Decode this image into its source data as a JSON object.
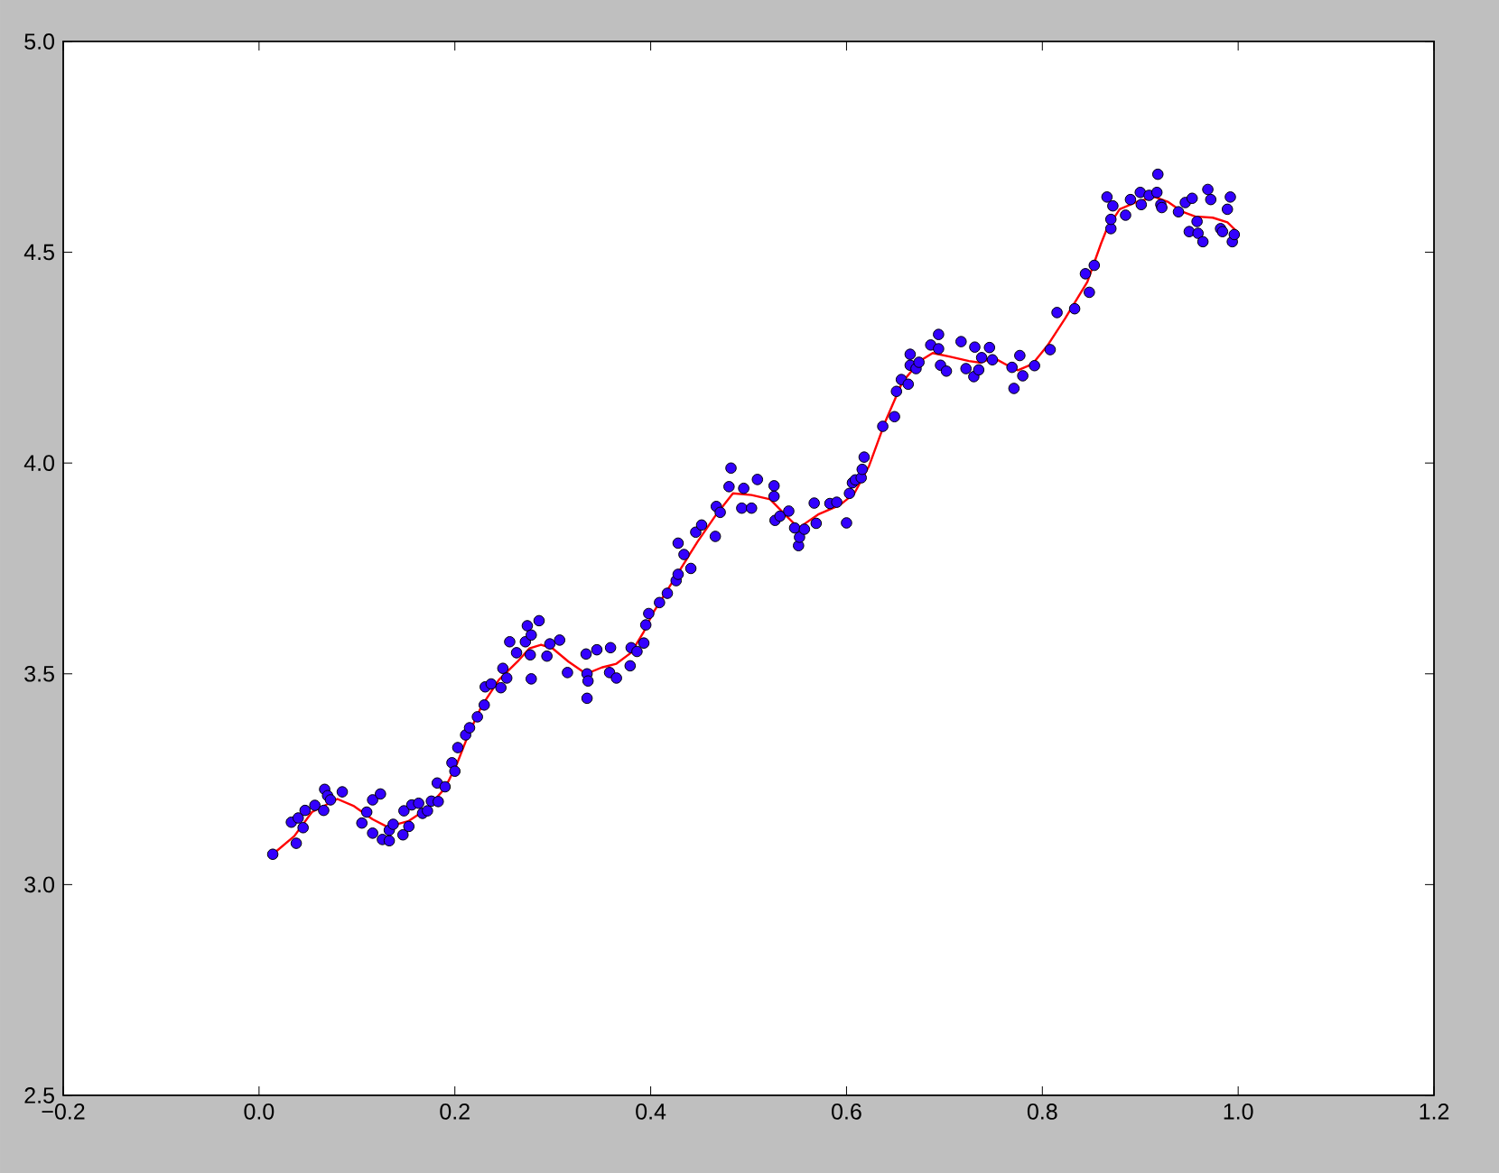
{
  "chart_data": {
    "type": "scatter",
    "xlim": [
      -0.2,
      1.2
    ],
    "ylim": [
      2.5,
      5.0
    ],
    "xticks": [
      {
        "value": -0.2,
        "label": "−0.2"
      },
      {
        "value": 0,
        "label": "0.0"
      },
      {
        "value": 0.2,
        "label": "0.2"
      },
      {
        "value": 0.4,
        "label": "0.4"
      },
      {
        "value": 0.6,
        "label": "0.6"
      },
      {
        "value": 0.8,
        "label": "0.8"
      },
      {
        "value": 1.0,
        "label": "1.0"
      },
      {
        "value": 1.2,
        "label": "1.2"
      }
    ],
    "yticks": [
      {
        "value": 2.5,
        "label": "2.5"
      },
      {
        "value": 3.0,
        "label": "3.0"
      },
      {
        "value": 3.5,
        "label": "3.5"
      },
      {
        "value": 4.0,
        "label": "4.0"
      },
      {
        "value": 4.5,
        "label": "4.5"
      },
      {
        "value": 5.0,
        "label": "5.0"
      }
    ],
    "marker": "circle",
    "series": [
      {
        "color": "#3300ff",
        "x": [
          0.014,
          0.033,
          0.038,
          0.04,
          0.045,
          0.047,
          0.057,
          0.066,
          0.067,
          0.07,
          0.073,
          0.085,
          0.105,
          0.11,
          0.116,
          0.116,
          0.124,
          0.126,
          0.133,
          0.133,
          0.137,
          0.147,
          0.148,
          0.153,
          0.156,
          0.163,
          0.167,
          0.172,
          0.176,
          0.182,
          0.183,
          0.19,
          0.197,
          0.2,
          0.203,
          0.211,
          0.215,
          0.223,
          0.23,
          0.231,
          0.237,
          0.247,
          0.249,
          0.253,
          0.256,
          0.263,
          0.272,
          0.274,
          0.277,
          0.278,
          0.278,
          0.286,
          0.294,
          0.297,
          0.307,
          0.315,
          0.334,
          0.335,
          0.335,
          0.336,
          0.345,
          0.358,
          0.359,
          0.365,
          0.379,
          0.38,
          0.386,
          0.393,
          0.395,
          0.398,
          0.409,
          0.417,
          0.426,
          0.428,
          0.428,
          0.434,
          0.441,
          0.446,
          0.452,
          0.466,
          0.467,
          0.471,
          0.48,
          0.482,
          0.493,
          0.495,
          0.503,
          0.509,
          0.526,
          0.526,
          0.527,
          0.532,
          0.541,
          0.547,
          0.551,
          0.552,
          0.557,
          0.567,
          0.569,
          0.583,
          0.59,
          0.6,
          0.603,
          0.606,
          0.609,
          0.615,
          0.616,
          0.618,
          0.637,
          0.649,
          0.651,
          0.656,
          0.663,
          0.665,
          0.665,
          0.671,
          0.674,
          0.686,
          0.694,
          0.694,
          0.696,
          0.702,
          0.717,
          0.722,
          0.73,
          0.731,
          0.735,
          0.738,
          0.746,
          0.749,
          0.769,
          0.771,
          0.777,
          0.78,
          0.792,
          0.808,
          0.815,
          0.833,
          0.844,
          0.848,
          0.853,
          0.866,
          0.87,
          0.87,
          0.872,
          0.885,
          0.89,
          0.9,
          0.901,
          0.909,
          0.917,
          0.918,
          0.921,
          0.922,
          0.939,
          0.946,
          0.95,
          0.953,
          0.958,
          0.959,
          0.964,
          0.969,
          0.972,
          0.982,
          0.984,
          0.989,
          0.992,
          0.994,
          0.996
        ],
        "values": [
          3.072,
          3.148,
          3.098,
          3.158,
          3.135,
          3.176,
          3.188,
          3.176,
          3.226,
          3.211,
          3.201,
          3.22,
          3.146,
          3.172,
          3.201,
          3.122,
          3.215,
          3.107,
          3.104,
          3.129,
          3.143,
          3.118,
          3.175,
          3.138,
          3.189,
          3.193,
          3.169,
          3.175,
          3.198,
          3.241,
          3.197,
          3.232,
          3.289,
          3.269,
          3.325,
          3.355,
          3.372,
          3.398,
          3.426,
          3.469,
          3.476,
          3.467,
          3.513,
          3.49,
          3.576,
          3.55,
          3.576,
          3.614,
          3.545,
          3.592,
          3.488,
          3.626,
          3.542,
          3.571,
          3.58,
          3.503,
          3.547,
          3.5,
          3.442,
          3.483,
          3.557,
          3.503,
          3.562,
          3.49,
          3.519,
          3.562,
          3.553,
          3.573,
          3.616,
          3.643,
          3.669,
          3.691,
          3.721,
          3.81,
          3.736,
          3.783,
          3.75,
          3.836,
          3.853,
          3.826,
          3.897,
          3.883,
          3.944,
          3.988,
          3.893,
          3.94,
          3.893,
          3.961,
          3.946,
          3.921,
          3.864,
          3.874,
          3.886,
          3.846,
          3.804,
          3.824,
          3.843,
          3.905,
          3.857,
          3.904,
          3.907,
          3.858,
          3.928,
          3.953,
          3.96,
          3.965,
          3.985,
          4.014,
          4.087,
          4.11,
          4.17,
          4.198,
          4.187,
          4.232,
          4.258,
          4.224,
          4.239,
          4.28,
          4.305,
          4.271,
          4.232,
          4.218,
          4.288,
          4.224,
          4.205,
          4.275,
          4.221,
          4.25,
          4.274,
          4.245,
          4.227,
          4.177,
          4.255,
          4.207,
          4.231,
          4.269,
          4.357,
          4.366,
          4.449,
          4.405,
          4.469,
          4.631,
          4.556,
          4.578,
          4.61,
          4.588,
          4.625,
          4.642,
          4.613,
          4.635,
          4.642,
          4.685,
          4.613,
          4.606,
          4.596,
          4.618,
          4.549,
          4.628,
          4.573,
          4.545,
          4.525,
          4.649,
          4.625,
          4.556,
          4.549,
          4.602,
          4.631,
          4.525,
          4.542
        ]
      },
      {
        "type": "line",
        "color": "#ff0000",
        "marker": "none",
        "x": [
          0.014,
          0.036,
          0.054,
          0.08,
          0.097,
          0.116,
          0.131,
          0.153,
          0.171,
          0.19,
          0.202,
          0.214,
          0.227,
          0.245,
          0.264,
          0.276,
          0.288,
          0.3,
          0.316,
          0.334,
          0.35,
          0.365,
          0.38,
          0.393,
          0.402,
          0.423,
          0.448,
          0.467,
          0.484,
          0.503,
          0.522,
          0.54,
          0.551,
          0.571,
          0.593,
          0.608,
          0.623,
          0.639,
          0.657,
          0.675,
          0.688,
          0.706,
          0.725,
          0.737,
          0.75,
          0.765,
          0.775,
          0.79,
          0.805,
          0.823,
          0.846,
          0.86,
          0.866,
          0.879,
          0.897,
          0.915,
          0.928,
          0.943,
          0.956,
          0.974,
          0.989,
          0.997
        ],
        "values": [
          3.072,
          3.115,
          3.172,
          3.203,
          3.186,
          3.155,
          3.137,
          3.151,
          3.179,
          3.229,
          3.286,
          3.357,
          3.422,
          3.486,
          3.529,
          3.56,
          3.569,
          3.56,
          3.529,
          3.5,
          3.515,
          3.524,
          3.55,
          3.6,
          3.643,
          3.721,
          3.814,
          3.878,
          3.928,
          3.924,
          3.914,
          3.871,
          3.846,
          3.878,
          3.9,
          3.928,
          3.993,
          4.095,
          4.192,
          4.242,
          4.261,
          4.252,
          4.242,
          4.238,
          4.25,
          4.231,
          4.22,
          4.235,
          4.278,
          4.342,
          4.43,
          4.521,
          4.556,
          4.602,
          4.62,
          4.631,
          4.62,
          4.596,
          4.585,
          4.582,
          4.571,
          4.553
        ]
      }
    ]
  }
}
